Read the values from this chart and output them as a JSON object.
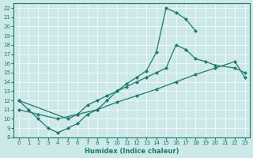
{
  "xlabel": "Humidex (Indice chaleur)",
  "bg_color": "#cce8e8",
  "line_color": "#1a7a6e",
  "xlim": [
    -0.5,
    23.5
  ],
  "ylim": [
    8,
    22.5
  ],
  "xticks": [
    0,
    1,
    2,
    3,
    4,
    5,
    6,
    7,
    8,
    9,
    10,
    11,
    12,
    13,
    14,
    15,
    16,
    17,
    18,
    19,
    20,
    21,
    22,
    23
  ],
  "yticks": [
    8,
    9,
    10,
    11,
    12,
    13,
    14,
    15,
    16,
    17,
    18,
    19,
    20,
    21,
    22
  ],
  "curve1_x": [
    0,
    1,
    2,
    3,
    4,
    5,
    6,
    7,
    8,
    9,
    10,
    11,
    12,
    13,
    14,
    15,
    16,
    17,
    18
  ],
  "curve1_y": [
    12.0,
    11.0,
    10.0,
    9.0,
    8.5,
    9.0,
    9.5,
    10.5,
    11.0,
    12.0,
    13.0,
    13.8,
    14.5,
    15.2,
    17.2,
    22.0,
    21.5,
    20.8,
    19.5
  ],
  "curve2_x": [
    0,
    5,
    6,
    7,
    8,
    9,
    10,
    11,
    12,
    13,
    14,
    15,
    16,
    17,
    18,
    19,
    20,
    22,
    23
  ],
  "curve2_y": [
    12.0,
    10.0,
    10.5,
    11.5,
    12.0,
    12.5,
    13.0,
    13.5,
    14.0,
    14.5,
    15.0,
    15.5,
    18.0,
    17.5,
    16.5,
    16.2,
    15.8,
    15.5,
    15.0
  ],
  "curve3_x": [
    0,
    2,
    4,
    6,
    8,
    10,
    12,
    14,
    16,
    18,
    20,
    22,
    23
  ],
  "curve3_y": [
    11.0,
    10.5,
    10.0,
    10.5,
    11.0,
    11.8,
    12.5,
    13.2,
    14.0,
    14.8,
    15.5,
    16.2,
    14.5
  ],
  "markersize": 2.5
}
